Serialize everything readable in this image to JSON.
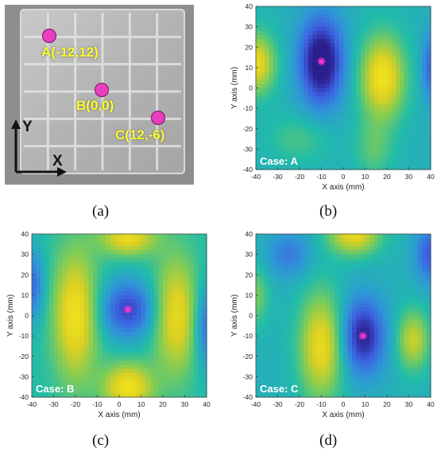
{
  "figure": {
    "labels": {
      "a": "(a)",
      "b": "(b)",
      "c": "(c)",
      "d": "(d)"
    }
  },
  "photo": {
    "points": [
      {
        "label": "A(-12,12)",
        "color": "#e83fbf"
      },
      {
        "label": "B(0,0)",
        "color": "#e83fbf"
      },
      {
        "label": "C(12,-6)",
        "color": "#e83fbf"
      }
    ],
    "axis_y": "Y",
    "axis_x": "X",
    "label_color": "#ffff30",
    "panel_color": "#9a9a9a"
  },
  "chart_data": [
    {
      "type": "heatmap",
      "case": "Case: A",
      "xlabel": "X axis (mm)",
      "ylabel": "Y axis (mm)",
      "xlim": [
        -40,
        40
      ],
      "ylim": [
        -40,
        40
      ],
      "xticks": [
        "-40",
        "-30",
        "-20",
        "-10",
        "0",
        "10",
        "20",
        "30",
        "40"
      ],
      "yticks": [
        "40",
        "30",
        "20",
        "10",
        "0",
        "-10",
        "-20",
        "-30",
        "-40"
      ],
      "marker": {
        "x": -10,
        "y": 13
      }
    },
    {
      "type": "heatmap",
      "case": "Case: B",
      "xlabel": "X axis (mm)",
      "ylabel": "Y axis (mm)",
      "xlim": [
        -40,
        40
      ],
      "ylim": [
        -40,
        40
      ],
      "xticks": [
        "-40",
        "-30",
        "-20",
        "-10",
        "0",
        "10",
        "20",
        "30",
        "40"
      ],
      "yticks": [
        "40",
        "30",
        "20",
        "10",
        "0",
        "-10",
        "-20",
        "-30",
        "-40"
      ],
      "marker": {
        "x": 4,
        "y": 3
      }
    },
    {
      "type": "heatmap",
      "case": "Case: C",
      "xlabel": "X axis (mm)",
      "ylabel": "Y axis (mm)",
      "xlim": [
        -40,
        40
      ],
      "ylim": [
        -40,
        40
      ],
      "xticks": [
        "-40",
        "-30",
        "-20",
        "-10",
        "0",
        "10",
        "20",
        "30",
        "40"
      ],
      "yticks": [
        "40",
        "30",
        "20",
        "10",
        "0",
        "-10",
        "-20",
        "-30",
        "-40"
      ],
      "marker": {
        "x": 9,
        "y": -10
      }
    }
  ],
  "colors": {
    "marker": "#ff33cc",
    "colormap": [
      "#2b1f8f",
      "#3d5fe0",
      "#2f96d8",
      "#21bca9",
      "#7fcc57",
      "#ddd021",
      "#f6e91d"
    ]
  }
}
